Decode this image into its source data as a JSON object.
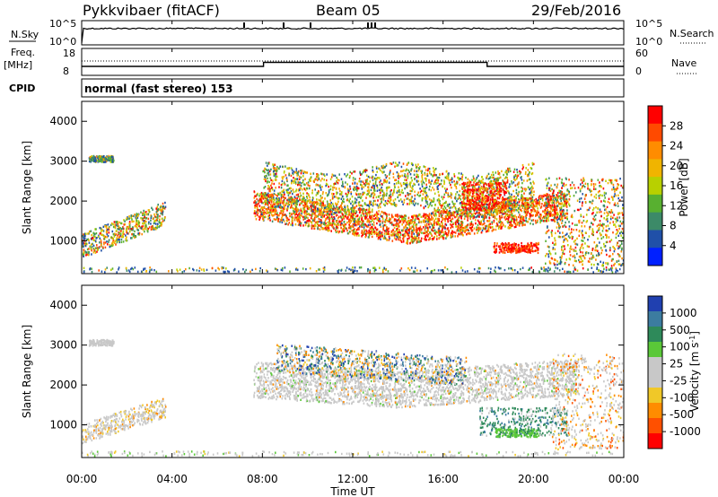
{
  "header": {
    "station": "Pykkvibaer (fitACF)",
    "beam": "Beam 05",
    "date": "29/Feb/2016"
  },
  "noise_panel": {
    "left_label": "N.Sky",
    "right_label": "N.Search",
    "ticks": [
      "10^5",
      "10^0"
    ]
  },
  "freq_panel": {
    "left_label_1": "Freq.",
    "left_label_2": "[MHz]",
    "left_ticks": [
      "18",
      "8"
    ],
    "right_label": "Nave",
    "right_ticks": [
      "60",
      "0"
    ]
  },
  "cpid": {
    "label": "CPID",
    "text": "normal (fast stereo) 153"
  },
  "chart_data": [
    {
      "type": "heatmap",
      "name": "power",
      "ylabel": "Slant Range [km]",
      "y_ticks": [
        "4000",
        "3000",
        "2000",
        "1000"
      ],
      "ylim": [
        180,
        4500
      ],
      "colorbar_label": "Power [dB]",
      "colorbar_ticks": [
        "28",
        "24",
        "20",
        "16",
        "12",
        "8",
        "4"
      ],
      "colorbar_colors": [
        "#ff0000",
        "#ff4a00",
        "#ff8c00",
        "#f0b400",
        "#b8d000",
        "#58b030",
        "#3c8a68",
        "#2050a8",
        "#0020ff"
      ]
    },
    {
      "type": "heatmap",
      "name": "velocity",
      "ylabel": "Slant Range [km]",
      "y_ticks": [
        "4000",
        "3000",
        "2000",
        "1000"
      ],
      "ylim": [
        180,
        4500
      ],
      "colorbar_label": "Velocity [m s^-1]",
      "colorbar_ticks": [
        "1000",
        "500",
        "100",
        "25",
        "-25",
        "-100",
        "-500",
        "-1000"
      ],
      "colorbar_colors": [
        "#2040b0",
        "#3c7ca0",
        "#2e8a5a",
        "#5ac838",
        "#c8c8c8",
        "#c8c8c8",
        "#f0c828",
        "#ff8c00",
        "#ff5000",
        "#ff0000"
      ]
    }
  ],
  "x_axis": {
    "label": "Time UT",
    "ticks": [
      "00:00",
      "04:00",
      "08:00",
      "12:00",
      "16:00",
      "20:00",
      "00:00"
    ]
  }
}
